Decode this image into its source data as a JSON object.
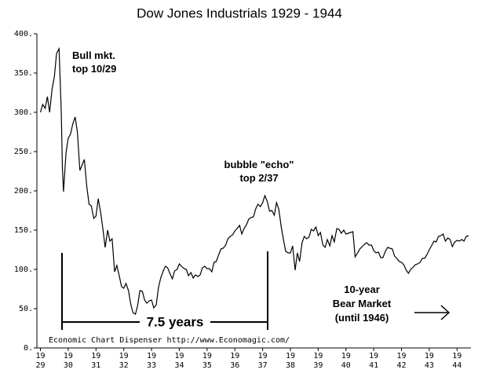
{
  "chart_data": {
    "type": "line",
    "title": "Dow Jones Industrials 1929 -  1944",
    "color": "#000000",
    "x": [
      1929.0,
      1929.08,
      1929.17,
      1929.25,
      1929.33,
      1929.42,
      1929.5,
      1929.58,
      1929.67,
      1929.75,
      1929.79,
      1929.83,
      1929.92,
      1930.0,
      1930.08,
      1930.17,
      1930.25,
      1930.33,
      1930.42,
      1930.5,
      1930.58,
      1930.67,
      1930.75,
      1930.83,
      1930.92,
      1931.0,
      1931.08,
      1931.17,
      1931.25,
      1931.33,
      1931.42,
      1931.5,
      1931.58,
      1931.67,
      1931.75,
      1931.83,
      1931.92,
      1932.0,
      1932.08,
      1932.17,
      1932.25,
      1932.33,
      1932.42,
      1932.5,
      1932.58,
      1932.67,
      1932.75,
      1932.83,
      1932.92,
      1933.0,
      1933.08,
      1933.17,
      1933.25,
      1933.33,
      1933.42,
      1933.5,
      1933.58,
      1933.67,
      1933.75,
      1933.83,
      1933.92,
      1934.0,
      1934.08,
      1934.17,
      1934.25,
      1934.33,
      1934.42,
      1934.5,
      1934.58,
      1934.67,
      1934.75,
      1934.83,
      1934.92,
      1935.0,
      1935.08,
      1935.17,
      1935.25,
      1935.33,
      1935.42,
      1935.5,
      1935.58,
      1935.67,
      1935.75,
      1935.83,
      1935.92,
      1936.0,
      1936.08,
      1936.17,
      1936.25,
      1936.33,
      1936.42,
      1936.5,
      1936.58,
      1936.67,
      1936.75,
      1936.83,
      1936.92,
      1937.0,
      1937.08,
      1937.17,
      1937.25,
      1937.33,
      1937.42,
      1937.5,
      1937.58,
      1937.67,
      1937.75,
      1937.83,
      1937.92,
      1938.0,
      1938.08,
      1938.17,
      1938.25,
      1938.33,
      1938.42,
      1938.5,
      1938.58,
      1938.67,
      1938.75,
      1938.83,
      1938.92,
      1939.0,
      1939.08,
      1939.17,
      1939.25,
      1939.33,
      1939.42,
      1939.5,
      1939.58,
      1939.67,
      1939.75,
      1939.83,
      1939.92,
      1940.0,
      1940.08,
      1940.17,
      1940.25,
      1940.33,
      1940.42,
      1940.5,
      1940.58,
      1940.67,
      1940.75,
      1940.83,
      1940.92,
      1941.0,
      1941.08,
      1941.17,
      1941.25,
      1941.33,
      1941.42,
      1941.5,
      1941.58,
      1941.67,
      1941.75,
      1941.83,
      1941.92,
      1942.0,
      1942.08,
      1942.17,
      1942.25,
      1942.33,
      1942.42,
      1942.5,
      1942.58,
      1942.67,
      1942.75,
      1942.83,
      1942.92,
      1943.0,
      1943.08,
      1943.17,
      1943.25,
      1943.33,
      1943.42,
      1943.5,
      1943.58,
      1943.67,
      1943.75,
      1943.83,
      1943.92,
      1944.0,
      1944.08,
      1944.17,
      1944.25,
      1944.33,
      1944.42
    ],
    "values": [
      300,
      310,
      305,
      320,
      300,
      330,
      345,
      375,
      381,
      300,
      230,
      199,
      248,
      267,
      272,
      286,
      294,
      275,
      226,
      233,
      240,
      205,
      183,
      181,
      165,
      168,
      190,
      172,
      151,
      128,
      150,
      136,
      139,
      97,
      105,
      93,
      78,
      76,
      82,
      73,
      56,
      45,
      43,
      54,
      73,
      72,
      61,
      57,
      60,
      61,
      51,
      55,
      77,
      89,
      98,
      104,
      102,
      94,
      88,
      98,
      100,
      107,
      104,
      101,
      100,
      92,
      96,
      89,
      93,
      91,
      93,
      102,
      104,
      101,
      101,
      97,
      109,
      110,
      119,
      126,
      127,
      131,
      139,
      142,
      144,
      149,
      152,
      156,
      145,
      152,
      157,
      164,
      166,
      167,
      177,
      183,
      180,
      185,
      194,
      186,
      174,
      175,
      169,
      185,
      177,
      154,
      138,
      123,
      121,
      121,
      130,
      99,
      121,
      110,
      134,
      142,
      139,
      141,
      151,
      149,
      154,
      143,
      147,
      131,
      128,
      138,
      130,
      143,
      135,
      152,
      151,
      146,
      150,
      145,
      146,
      147,
      148,
      116,
      121,
      126,
      129,
      132,
      134,
      131,
      131,
      124,
      121,
      122,
      115,
      115,
      123,
      128,
      127,
      126,
      117,
      114,
      110,
      109,
      106,
      99,
      95,
      100,
      103,
      106,
      107,
      109,
      114,
      114,
      119,
      125,
      130,
      136,
      135,
      142,
      143,
      145,
      136,
      140,
      138,
      129,
      135,
      137,
      136,
      138,
      136,
      142,
      143
    ],
    "xlim": [
      1928.9,
      1944.5
    ],
    "ylim": [
      0,
      400
    ],
    "yticks": [
      {
        "value": 0,
        "label": "0."
      },
      {
        "value": 50,
        "label": "50."
      },
      {
        "value": 100,
        "label": "100."
      },
      {
        "value": 150,
        "label": "150."
      },
      {
        "value": 200,
        "label": "200."
      },
      {
        "value": 250,
        "label": "250."
      },
      {
        "value": 300,
        "label": "300."
      },
      {
        "value": 350,
        "label": "350."
      },
      {
        "value": 400,
        "label": "400."
      }
    ],
    "xticks": [
      {
        "value": 1929,
        "label": "19\n29"
      },
      {
        "value": 1930,
        "label": "19\n30"
      },
      {
        "value": 1931,
        "label": "19\n31"
      },
      {
        "value": 1932,
        "label": "19\n32"
      },
      {
        "value": 1933,
        "label": "19\n33"
      },
      {
        "value": 1934,
        "label": "19\n34"
      },
      {
        "value": 1935,
        "label": "19\n35"
      },
      {
        "value": 1936,
        "label": "19\n36"
      },
      {
        "value": 1937,
        "label": "19\n37"
      },
      {
        "value": 1938,
        "label": "19\n38"
      },
      {
        "value": 1939,
        "label": "19\n39"
      },
      {
        "value": 1940,
        "label": "19\n40"
      },
      {
        "value": 1941,
        "label": "19\n41"
      },
      {
        "value": 1942,
        "label": "19\n42"
      },
      {
        "value": 1943,
        "label": "19\n43"
      },
      {
        "value": 1944,
        "label": "19\n44"
      }
    ],
    "grid": false,
    "annotations": {
      "bull": "Bull mkt.\ntop 10/29",
      "echo": "bubble \"echo\"\ntop 2/37",
      "years": "7.5 years",
      "bear": "10-year\nBear Market\n(until 1946)",
      "source": "Economic Chart Dispenser  http://www.Economagic.com/"
    }
  }
}
